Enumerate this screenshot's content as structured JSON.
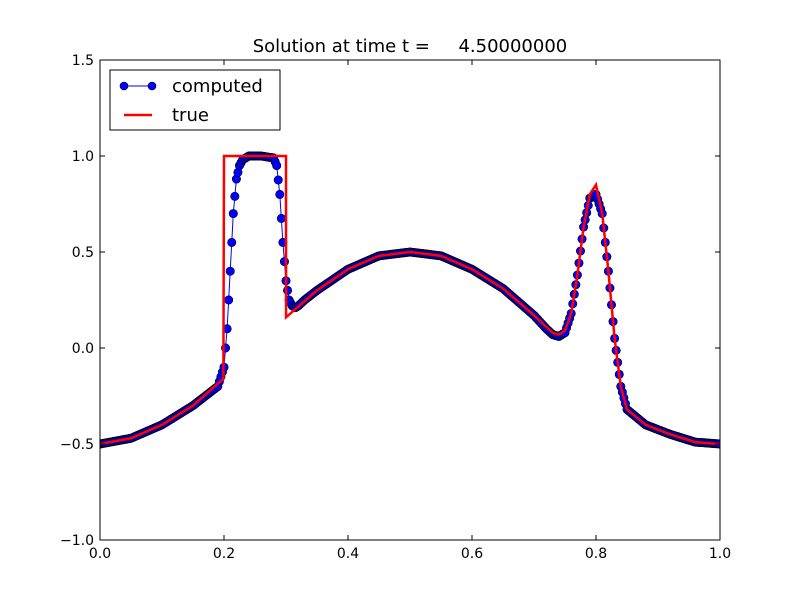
{
  "chart_data": {
    "type": "line",
    "title": "Solution at time t =     4.50000000",
    "xlabel": "",
    "ylabel": "",
    "xlim": [
      0.0,
      1.0
    ],
    "ylim": [
      -1.0,
      1.5
    ],
    "xticks": [
      0.0,
      0.2,
      0.4,
      0.6,
      0.8,
      1.0
    ],
    "xtick_labels": [
      "0.0",
      "0.2",
      "0.4",
      "0.6",
      "0.8",
      "1.0"
    ],
    "yticks": [
      -1.0,
      -0.5,
      0.0,
      0.5,
      1.0,
      1.5
    ],
    "ytick_labels": [
      "−1.0",
      "−0.5",
      "0.0",
      "0.5",
      "1.0",
      "1.5"
    ],
    "grid": false,
    "legend": {
      "placement": "top-left",
      "entries": [
        "computed",
        "true"
      ]
    },
    "series": [
      {
        "name": "computed",
        "style": "line-with-circle-markers",
        "color": "#0000ff",
        "marker_edge": "#000000",
        "x": [
          0.0,
          0.05,
          0.1,
          0.15,
          0.19,
          0.195,
          0.2,
          0.205,
          0.21,
          0.215,
          0.22,
          0.225,
          0.23,
          0.24,
          0.26,
          0.28,
          0.285,
          0.29,
          0.295,
          0.3,
          0.305,
          0.31,
          0.315,
          0.32,
          0.33,
          0.35,
          0.4,
          0.45,
          0.5,
          0.55,
          0.6,
          0.65,
          0.7,
          0.72,
          0.73,
          0.74,
          0.75,
          0.76,
          0.77,
          0.78,
          0.79,
          0.8,
          0.81,
          0.82,
          0.83,
          0.84,
          0.85,
          0.88,
          0.92,
          0.96,
          1.0
        ],
        "y": [
          -0.5,
          -0.47,
          -0.4,
          -0.3,
          -0.2,
          -0.15,
          -0.1,
          0.1,
          0.4,
          0.7,
          0.88,
          0.95,
          0.98,
          1.0,
          1.0,
          0.99,
          0.95,
          0.8,
          0.55,
          0.35,
          0.25,
          0.22,
          0.21,
          0.22,
          0.25,
          0.3,
          0.41,
          0.48,
          0.5,
          0.48,
          0.41,
          0.31,
          0.17,
          0.1,
          0.07,
          0.06,
          0.08,
          0.18,
          0.38,
          0.63,
          0.78,
          0.8,
          0.7,
          0.4,
          0.05,
          -0.2,
          -0.32,
          -0.4,
          -0.45,
          -0.49,
          -0.5
        ]
      },
      {
        "name": "true",
        "style": "line",
        "color": "#ff0000",
        "x": [
          0.0,
          0.05,
          0.1,
          0.15,
          0.199,
          0.2,
          0.3,
          0.3001,
          0.35,
          0.4,
          0.45,
          0.5,
          0.55,
          0.6,
          0.65,
          0.7,
          0.72,
          0.73,
          0.74,
          0.75,
          0.76,
          0.77,
          0.78,
          0.79,
          0.8,
          0.81,
          0.82,
          0.83,
          0.84,
          0.85,
          0.88,
          0.92,
          0.96,
          1.0
        ],
        "y": [
          -0.5,
          -0.47,
          -0.4,
          -0.3,
          -0.16,
          1.0,
          1.0,
          0.16,
          0.3,
          0.41,
          0.48,
          0.5,
          0.48,
          0.41,
          0.31,
          0.17,
          0.11,
          0.08,
          0.07,
          0.09,
          0.18,
          0.38,
          0.63,
          0.8,
          0.85,
          0.7,
          0.4,
          0.05,
          -0.2,
          -0.32,
          -0.4,
          -0.45,
          -0.49,
          -0.5
        ]
      }
    ]
  }
}
